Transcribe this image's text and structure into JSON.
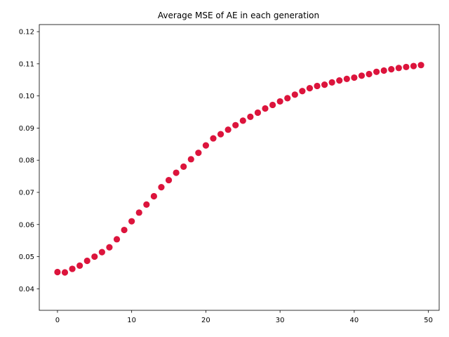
{
  "chart_data": {
    "type": "scatter",
    "title": "Average MSE of AE in each generation",
    "xlabel": "",
    "ylabel": "",
    "xlim": [
      -2.45,
      51.45
    ],
    "ylim": [
      0.0333,
      0.1222
    ],
    "x_ticks": [
      0,
      10,
      20,
      30,
      40,
      50
    ],
    "y_ticks": [
      0.04,
      0.05,
      0.06,
      0.07,
      0.08,
      0.09,
      0.1,
      0.11,
      0.12
    ],
    "y_tick_labels": [
      "0.04",
      "0.05",
      "0.06",
      "0.07",
      "0.08",
      "0.09",
      "0.10",
      "0.11",
      "0.12"
    ],
    "grid": false,
    "legend": "none",
    "marker_color": "#dc143c",
    "x": [
      0,
      1,
      2,
      3,
      4,
      5,
      6,
      7,
      8,
      9,
      10,
      11,
      12,
      13,
      14,
      15,
      16,
      17,
      18,
      19,
      20,
      21,
      22,
      23,
      24,
      25,
      26,
      27,
      28,
      29,
      30,
      31,
      32,
      33,
      34,
      35,
      36,
      37,
      38,
      39,
      40,
      41,
      42,
      43,
      44,
      45,
      46,
      47,
      48,
      49
    ],
    "y": [
      0.0452,
      0.0451,
      0.0462,
      0.0472,
      0.0487,
      0.05,
      0.0514,
      0.0529,
      0.0554,
      0.0583,
      0.061,
      0.0637,
      0.0662,
      0.0688,
      0.0716,
      0.0738,
      0.0761,
      0.078,
      0.0803,
      0.0823,
      0.0846,
      0.0868,
      0.0881,
      0.0895,
      0.0909,
      0.0923,
      0.0935,
      0.0948,
      0.0961,
      0.0972,
      0.0983,
      0.0993,
      0.1004,
      0.1015,
      0.1024,
      0.1031,
      0.1035,
      0.1042,
      0.1048,
      0.1053,
      0.1057,
      0.1063,
      0.1068,
      0.1075,
      0.1079,
      0.1083,
      0.1087,
      0.109,
      0.1093,
      0.1096
    ]
  }
}
